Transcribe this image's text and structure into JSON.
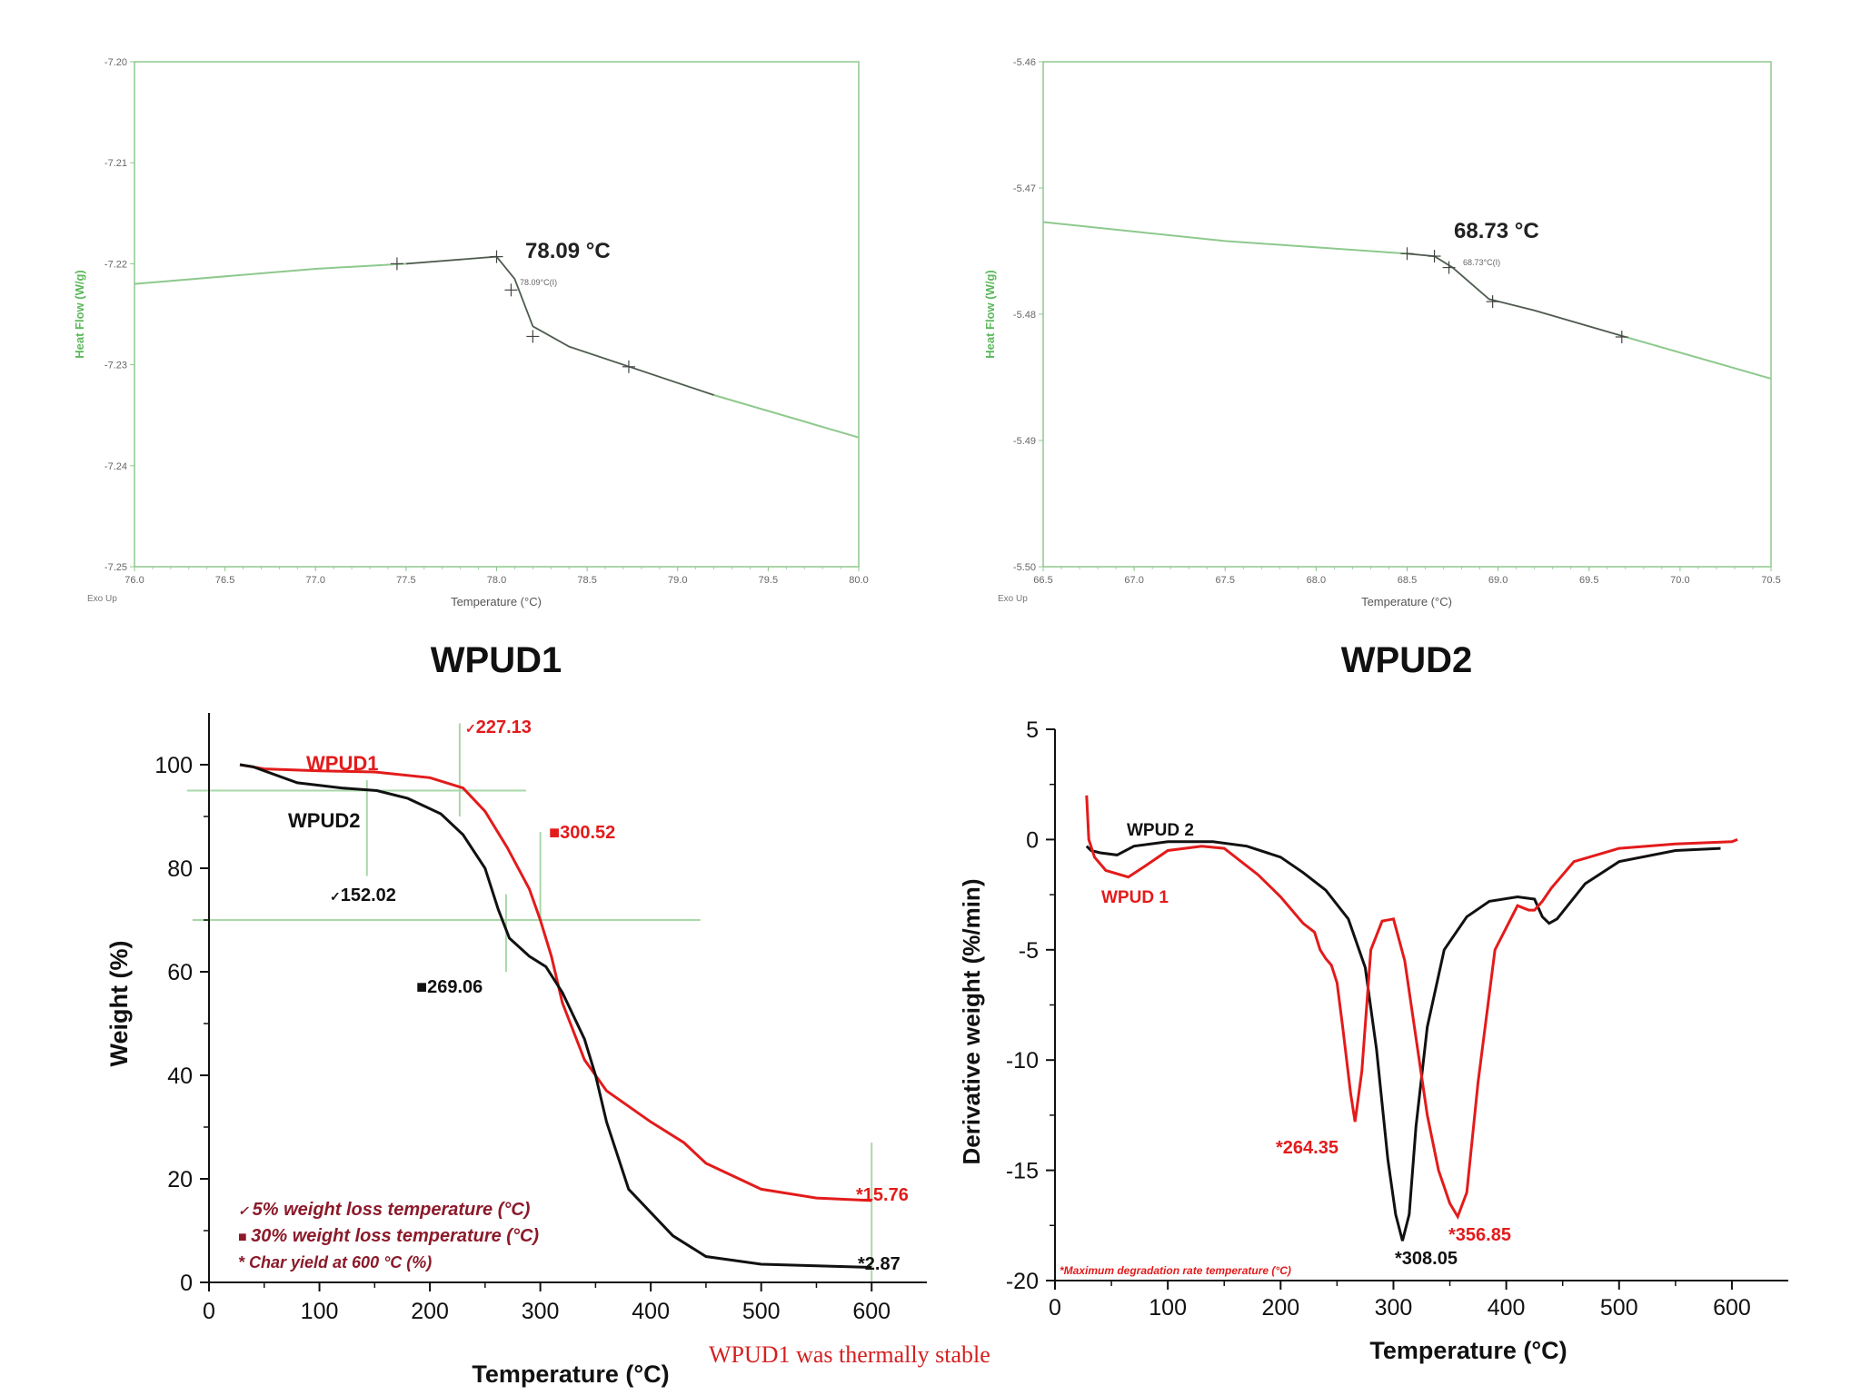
{
  "panels": {
    "dsc1_caption": "WPUD1",
    "dsc2_caption": "WPUD2",
    "footnote": "WPUD1 was thermally stable"
  },
  "colors": {
    "dsc_green": "#8ec98e",
    "dsc_dark": "#555555",
    "wpud1_red": "#e31b1b",
    "wpud2_black": "#111111",
    "legend_maroon": "#8b1a2a",
    "guide_green": "#a8d8a8"
  },
  "chart_data": [
    {
      "id": "dsc-wpud1",
      "type": "line",
      "xlabel": "Temperature (°C)",
      "ylabel": "Heat Flow (W/g)",
      "corner_label": "Exo Up",
      "xlim": [
        76.0,
        80.0
      ],
      "ylim": [
        -7.25,
        -7.2
      ],
      "xticks": [
        "76.0",
        "76.5",
        "77.0",
        "77.5",
        "78.0",
        "78.5",
        "79.0",
        "79.5",
        "80.0"
      ],
      "yticks": [
        "-7.20",
        "-7.21",
        "-7.22",
        "-7.23",
        "-7.24",
        "-7.25"
      ],
      "series": [
        {
          "x": [
            76.0,
            77.0,
            77.5,
            78.0,
            78.1,
            78.2,
            78.4,
            78.7,
            79.2,
            80.0
          ],
          "y": [
            -7.222,
            -7.2205,
            -7.22,
            -7.2193,
            -7.2215,
            -7.2262,
            -7.2282,
            -7.23,
            -7.233,
            -7.2372
          ]
        }
      ],
      "markers": [
        {
          "x": 77.45,
          "y": -7.22
        },
        {
          "x": 78.0,
          "y": -7.2193
        },
        {
          "x": 78.08,
          "y": -7.2226
        },
        {
          "x": 78.2,
          "y": -7.2272
        },
        {
          "x": 78.73,
          "y": -7.2302
        }
      ],
      "tg_label": "78.09 °C",
      "tg_small_label": "78.09°C(I)"
    },
    {
      "id": "dsc-wpud2",
      "type": "line",
      "xlabel": "Temperature (°C)",
      "ylabel": "Heat Flow (W/g)",
      "corner_label": "Exo Up",
      "xlim": [
        66.5,
        70.5
      ],
      "ylim": [
        -5.5,
        -5.46
      ],
      "xticks": [
        "66.5",
        "67.0",
        "67.5",
        "68.0",
        "68.5",
        "69.0",
        "69.5",
        "70.0",
        "70.5"
      ],
      "yticks": [
        "-5.46",
        "-5.47",
        "-5.48",
        "-5.49",
        "-5.50"
      ],
      "series": [
        {
          "x": [
            66.5,
            67.5,
            68.5,
            68.65,
            68.75,
            68.95,
            69.2,
            69.7,
            70.5
          ],
          "y": [
            -5.4727,
            -5.4742,
            -5.4752,
            -5.4754,
            -5.4763,
            -5.4788,
            -5.4797,
            -5.4818,
            -5.4851
          ]
        }
      ],
      "markers": [
        {
          "x": 68.5,
          "y": -5.4752
        },
        {
          "x": 68.65,
          "y": -5.4754
        },
        {
          "x": 68.73,
          "y": -5.4763
        },
        {
          "x": 68.97,
          "y": -5.479
        },
        {
          "x": 69.68,
          "y": -5.4818
        }
      ],
      "tg_label": "68.73 °C",
      "tg_small_label": "68.73°C(I)"
    },
    {
      "id": "tga",
      "type": "line",
      "xlabel": "Temperature (°C)",
      "ylabel": "Weight (%)",
      "xlim": [
        0,
        650
      ],
      "ylim": [
        0,
        110
      ],
      "xticks": [
        0,
        100,
        200,
        300,
        400,
        500,
        600
      ],
      "yticks": [
        0,
        20,
        40,
        60,
        80,
        100
      ],
      "series": [
        {
          "name": "WPUD1",
          "color": "red",
          "x": [
            28,
            50,
            100,
            150,
            200,
            230,
            250,
            270,
            290,
            300,
            310,
            320,
            340,
            360,
            400,
            430,
            450,
            500,
            550,
            600
          ],
          "y": [
            100,
            99.2,
            98.8,
            98.6,
            97.5,
            95.5,
            91,
            84,
            76,
            70,
            63,
            54,
            43,
            37,
            31,
            27,
            23,
            18,
            16.3,
            15.8
          ]
        },
        {
          "name": "WPUD2",
          "color": "black",
          "x": [
            28,
            40,
            80,
            120,
            152,
            180,
            210,
            230,
            250,
            262,
            272,
            290,
            305,
            320,
            340,
            350,
            360,
            380,
            420,
            450,
            500,
            550,
            600
          ],
          "y": [
            100,
            99.6,
            96.5,
            95.5,
            95,
            93.5,
            90.5,
            86.5,
            80,
            72,
            66.5,
            63,
            61,
            56,
            47,
            40,
            31,
            18,
            9,
            5,
            3.5,
            3.2,
            2.9
          ]
        }
      ],
      "legend_labels": [
        "WPUD1",
        "WPUD2"
      ],
      "annotations": {
        "wpud1_5pct": "227.13",
        "wpud1_30pct": "300.52",
        "wpud2_5pct": "152.02",
        "wpud2_30pct": "269.06",
        "wpud1_char": "*15.76",
        "wpud2_char": "*2.87"
      },
      "key": {
        "five_pct": "5% weight loss temperature (°C)",
        "thirty_pct": "30% weight loss temperature (°C)",
        "char": "* Char yield at 600 °C (%)"
      }
    },
    {
      "id": "dtg",
      "type": "line",
      "xlabel": "Temperature (°C)",
      "ylabel": "Derivative weight (%/min)",
      "xlim": [
        0,
        650
      ],
      "ylim": [
        -20,
        5
      ],
      "xticks": [
        0,
        100,
        200,
        300,
        400,
        500,
        600
      ],
      "yticks": [
        5,
        0,
        -5,
        -10,
        -15,
        -20
      ],
      "series": [
        {
          "name": "WPUD 1",
          "color": "red",
          "x": [
            28,
            30,
            35,
            45,
            65,
            80,
            100,
            130,
            150,
            180,
            200,
            220,
            230,
            235,
            240,
            245,
            250,
            255,
            262,
            266,
            272,
            280,
            290,
            300,
            310,
            320,
            330,
            340,
            350,
            357,
            365,
            375,
            390,
            410,
            420,
            425,
            432,
            440,
            460,
            500,
            550,
            600,
            605
          ],
          "y": [
            2,
            0,
            -0.8,
            -1.4,
            -1.7,
            -1.2,
            -0.5,
            -0.3,
            -0.4,
            -1.6,
            -2.6,
            -3.8,
            -4.2,
            -5.0,
            -5.4,
            -5.7,
            -6.5,
            -8.5,
            -11.5,
            -12.8,
            -10.5,
            -5.0,
            -3.7,
            -3.6,
            -5.5,
            -9.0,
            -12.5,
            -15.0,
            -16.5,
            -17.1,
            -16.0,
            -11.0,
            -5.0,
            -3.0,
            -3.2,
            -3.2,
            -2.8,
            -2.2,
            -1.0,
            -0.4,
            -0.2,
            -0.1,
            0
          ]
        },
        {
          "name": "WPUD 2",
          "color": "black",
          "x": [
            28,
            32,
            40,
            55,
            70,
            100,
            140,
            170,
            200,
            220,
            240,
            260,
            275,
            285,
            295,
            302,
            308,
            314,
            320,
            330,
            345,
            365,
            385,
            410,
            425,
            432,
            438,
            445,
            470,
            500,
            550,
            590
          ],
          "y": [
            -0.3,
            -0.5,
            -0.6,
            -0.7,
            -0.3,
            -0.1,
            -0.1,
            -0.3,
            -0.8,
            -1.5,
            -2.3,
            -3.6,
            -5.8,
            -9.5,
            -14.5,
            -17.0,
            -18.2,
            -17.0,
            -13.0,
            -8.5,
            -5.0,
            -3.5,
            -2.8,
            -2.6,
            -2.7,
            -3.5,
            -3.8,
            -3.6,
            -2.0,
            -1.0,
            -0.5,
            -0.4
          ]
        }
      ],
      "legend_labels": [
        "WPUD 2",
        "WPUD 1"
      ],
      "annotations": {
        "wpud1_peak1": "*264.35",
        "wpud1_peak2": "*356.85",
        "wpud2_peak": "*308.05"
      },
      "key": "*Maximum degradation rate temperature (°C)"
    }
  ]
}
